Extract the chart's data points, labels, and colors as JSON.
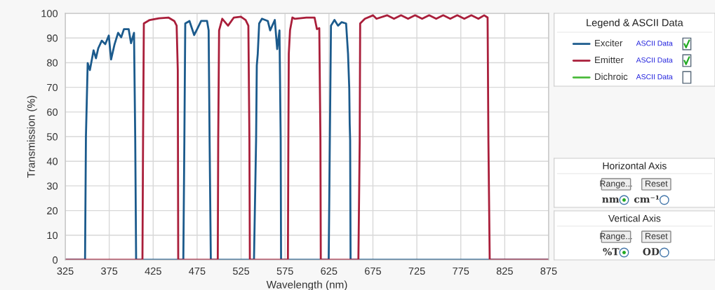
{
  "chart_data": {
    "type": "line",
    "xlabel": "Wavelength (nm)",
    "ylabel": "Transmission (%)",
    "legend_title": "Legend & ASCII Data",
    "legend": "right",
    "grid": true,
    "xlim": [
      325,
      875
    ],
    "xticks": [
      325,
      375,
      425,
      475,
      525,
      575,
      625,
      675,
      725,
      775,
      825,
      875
    ],
    "ylim": [
      0,
      100
    ],
    "yticks": [
      0,
      10,
      20,
      30,
      40,
      50,
      60,
      70,
      80,
      90,
      100
    ],
    "series": [
      {
        "name": "Exciter",
        "color": "#1b5a8c",
        "x": [
          325,
          347.5,
          348.5,
          350.5,
          353,
          357.2,
          359.9,
          362.5,
          366.5,
          370.5,
          374.5,
          377.1,
          381.1,
          385.1,
          388.6,
          391.8,
          397.1,
          399.8,
          403.2,
          404.6,
          405.6,
          459.3,
          460.5,
          461.5,
          466.3,
          471.6,
          475.6,
          479.6,
          486.3,
          488.1,
          489.2,
          490.6,
          539.7,
          542.1,
          542.9,
          544,
          545.6,
          548.8,
          555.4,
          558.1,
          563.4,
          566.1,
          568.7,
          570.1,
          570.5,
          624.7,
          626,
          627.3,
          631.3,
          635.3,
          639.3,
          644.5,
          646.7,
          648.1,
          648.6,
          649.1,
          649.6,
          875
        ],
        "values": [
          0,
          0,
          50,
          79.8,
          77.0,
          85.0,
          81.8,
          85.8,
          88.9,
          87.5,
          91.0,
          81.3,
          87.5,
          92.1,
          90.3,
          93.6,
          93.6,
          87.9,
          92.1,
          48.6,
          0,
          0,
          48.6,
          95.9,
          96.9,
          91.2,
          94.0,
          96.9,
          96.9,
          93.1,
          48.6,
          0,
          0,
          48.6,
          78.9,
          83.6,
          95.9,
          97.8,
          96.9,
          93.1,
          97.3,
          85.5,
          93.1,
          48.6,
          0,
          0,
          48.6,
          95.0,
          97.3,
          95.0,
          96.4,
          95.9,
          83.6,
          69.4,
          55.2,
          48.6,
          0,
          0
        ]
      },
      {
        "name": "Emitter",
        "color": "#a91e3a",
        "x": [
          325,
          412.8,
          413.5,
          414.4,
          421,
          431.7,
          442.3,
          449,
          451.7,
          453,
          453.5,
          498.5,
          499,
          500,
          503.6,
          510.2,
          516.8,
          524.8,
          530.2,
          533.3,
          534.5,
          535,
          578.3,
          578.8,
          579.3,
          580.7,
          583.4,
          586,
          599.3,
          608.6,
          611.3,
          614,
          615.3,
          615.7,
          658.5,
          660,
          660.5,
          665.9,
          675.2,
          679.1,
          691.1,
          699,
          707,
          715,
          723,
          731,
          739,
          747,
          755,
          763,
          771,
          779,
          787,
          795,
          801.6,
          805.5,
          806.4,
          807.9,
          875
        ],
        "values": [
          0,
          0,
          48.6,
          95.9,
          97.3,
          98.0,
          98.3,
          96.9,
          95.0,
          77.0,
          0,
          0,
          48.6,
          93.1,
          97.8,
          95.0,
          98.3,
          98.6,
          97.3,
          95.0,
          48.6,
          0,
          0,
          48.6,
          83.6,
          93.1,
          98.3,
          97.8,
          98.3,
          98.3,
          93.6,
          94.0,
          48.6,
          0,
          0,
          48.6,
          95.9,
          97.8,
          99.2,
          97.8,
          99.2,
          97.8,
          99.2,
          97.8,
          99.2,
          97.8,
          99.2,
          97.8,
          99.2,
          97.8,
          99.2,
          97.8,
          99.2,
          97.8,
          99.2,
          98.3,
          48.6,
          0,
          0
        ]
      },
      {
        "name": "Dichroic",
        "color": "#4cbb3c"
      }
    ],
    "annotations": [
      "ASCII Data",
      "ASCII Data",
      "ASCII Data",
      "Horizontal Axis",
      "Range...",
      "Reset",
      "nm",
      "cm⁻¹",
      "Vertical Axis",
      "Range...",
      "Reset",
      "%T",
      "OD"
    ]
  }
}
